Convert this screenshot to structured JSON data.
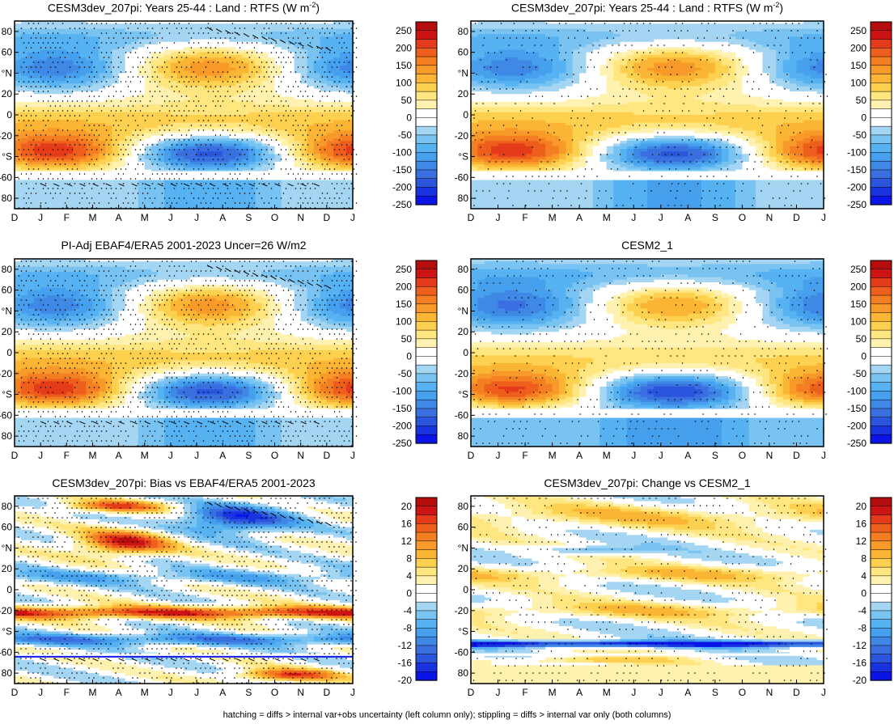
{
  "footer": "hatching = diffs > internal var+obs uncertainty (left column only); stippling = diffs > internal var only (both columns)",
  "colors": {
    "full": [
      "#0a14e6",
      "#1a33e0",
      "#2b55dd",
      "#3a6fe0",
      "#3f88e6",
      "#46a0ee",
      "#57b2f2",
      "#78c3f1",
      "#a4d5f2",
      "#ffffff",
      "#ffffff",
      "#fff2b0",
      "#ffe680",
      "#fdd14f",
      "#fbb534",
      "#f89a2a",
      "#f47f22",
      "#ee5f1d",
      "#e43b1a",
      "#cc1414",
      "#b50d0d"
    ],
    "diff": [
      "#0a14e6",
      "#1a33e0",
      "#2b55dd",
      "#3a6fe0",
      "#3f88e6",
      "#46a0ee",
      "#57b2f2",
      "#78c3f1",
      "#a4d5f2",
      "#ffffff",
      "#ffffff",
      "#fff2b0",
      "#ffe680",
      "#fdd14f",
      "#fbb534",
      "#f89a2a",
      "#f47f22",
      "#ee5f1d",
      "#e43b1a",
      "#cc1414",
      "#b50d0d"
    ]
  },
  "chart_data": [
    {
      "type": "heatmap",
      "title": "CESM3dev_207pi: Years 25-44 : Land : RTFS (W m",
      "title_sup": "-2",
      "title_tail": ")",
      "x_ticks": [
        "D",
        "J",
        "F",
        "M",
        "A",
        "M",
        "J",
        "J",
        "A",
        "S",
        "O",
        "N",
        "D",
        "J"
      ],
      "y_ticks": [
        "80",
        "60",
        "°N",
        "20",
        "0",
        "-20",
        "°S",
        "-60",
        "80"
      ],
      "y_values": [
        80,
        60,
        40,
        20,
        0,
        -20,
        -40,
        -60,
        -80
      ],
      "xlim": [
        0,
        13
      ],
      "ylim": [
        -90,
        90
      ],
      "scale": "full",
      "colorbar_labels": [
        "250",
        "200",
        "150",
        "100",
        "50",
        "0",
        "-50",
        "-100",
        "-150",
        "-200",
        "-250"
      ],
      "stipple": true,
      "hatch": true
    },
    {
      "type": "heatmap",
      "title": "CESM3dev_207pi: Years 25-44 : Land : RTFS (W m",
      "title_sup": "-2",
      "title_tail": ")",
      "x_ticks": [
        "D",
        "J",
        "F",
        "M",
        "A",
        "M",
        "J",
        "J",
        "A",
        "S",
        "O",
        "N",
        "D",
        "J"
      ],
      "y_ticks": [
        "80",
        "60",
        "°N",
        "20",
        "0",
        "-20",
        "°S",
        "-60",
        "80"
      ],
      "y_values": [
        80,
        60,
        40,
        20,
        0,
        -20,
        -40,
        -60,
        -80
      ],
      "xlim": [
        0,
        13
      ],
      "ylim": [
        -90,
        90
      ],
      "scale": "full",
      "colorbar_labels": [
        "250",
        "200",
        "150",
        "100",
        "50",
        "0",
        "-50",
        "-100",
        "-150",
        "-200",
        "-250"
      ],
      "stipple": true,
      "hatch": false
    },
    {
      "type": "heatmap",
      "title": "PI-Adj EBAF4/ERA5 2001-2023 Uncer=26 W/m2",
      "title_sup": "",
      "title_tail": "",
      "x_ticks": [
        "D",
        "J",
        "F",
        "M",
        "A",
        "M",
        "J",
        "J",
        "A",
        "S",
        "O",
        "N",
        "D",
        "J"
      ],
      "y_ticks": [
        "80",
        "60",
        "°N",
        "20",
        "0",
        "-20",
        "°S",
        "-60",
        "80"
      ],
      "y_values": [
        80,
        60,
        40,
        20,
        0,
        -20,
        -40,
        -60,
        -80
      ],
      "xlim": [
        0,
        13
      ],
      "ylim": [
        -90,
        90
      ],
      "scale": "full",
      "colorbar_labels": [
        "250",
        "200",
        "150",
        "100",
        "50",
        "0",
        "-50",
        "-100",
        "-150",
        "-200",
        "-250"
      ],
      "stipple": true,
      "hatch": true
    },
    {
      "type": "heatmap",
      "title": "CESM2_1",
      "title_sup": "",
      "title_tail": "",
      "x_ticks": [
        "D",
        "J",
        "F",
        "M",
        "A",
        "M",
        "J",
        "J",
        "A",
        "S",
        "O",
        "N",
        "D",
        "J"
      ],
      "y_ticks": [
        "80",
        "60",
        "°N",
        "20",
        "0",
        "-20",
        "°S",
        "-60",
        "80"
      ],
      "y_values": [
        80,
        60,
        40,
        20,
        0,
        -20,
        -40,
        -60,
        -80
      ],
      "xlim": [
        0,
        13
      ],
      "ylim": [
        -90,
        90
      ],
      "scale": "full",
      "colorbar_labels": [
        "250",
        "200",
        "150",
        "100",
        "50",
        "0",
        "-50",
        "-100",
        "-150",
        "-200",
        "-250"
      ],
      "stipple": true,
      "hatch": false
    },
    {
      "type": "heatmap",
      "title": "CESM3dev_207pi: Bias vs EBAF4/ERA5 2001-2023",
      "title_sup": "",
      "title_tail": "",
      "x_ticks": [
        "D",
        "J",
        "F",
        "M",
        "A",
        "M",
        "J",
        "J",
        "A",
        "S",
        "O",
        "N",
        "D",
        "J"
      ],
      "y_ticks": [
        "80",
        "60",
        "°N",
        "20",
        "0",
        "-20",
        "°S",
        "-60",
        "80"
      ],
      "y_values": [
        80,
        60,
        40,
        20,
        0,
        -20,
        -40,
        -60,
        -80
      ],
      "xlim": [
        0,
        13
      ],
      "ylim": [
        -90,
        90
      ],
      "scale": "diff",
      "colorbar_labels": [
        "20",
        "16",
        "12",
        "8",
        "4",
        "0",
        "-4",
        "-8",
        "-12",
        "-16",
        "-20"
      ],
      "stipple": true,
      "hatch": true
    },
    {
      "type": "heatmap",
      "title": "CESM3dev_207pi: Change vs CESM2_1",
      "title_sup": "",
      "title_tail": "",
      "x_ticks": [
        "D",
        "J",
        "F",
        "M",
        "A",
        "M",
        "J",
        "J",
        "A",
        "S",
        "O",
        "N",
        "D",
        "J"
      ],
      "y_ticks": [
        "80",
        "60",
        "°N",
        "20",
        "0",
        "-20",
        "°S",
        "-60",
        "80"
      ],
      "y_values": [
        80,
        60,
        40,
        20,
        0,
        -20,
        -40,
        -60,
        -80
      ],
      "xlim": [
        0,
        13
      ],
      "ylim": [
        -90,
        90
      ],
      "scale": "diff",
      "colorbar_labels": [
        "20",
        "16",
        "12",
        "8",
        "4",
        "0",
        "-4",
        "-8",
        "-12",
        "-16",
        "-20"
      ],
      "stipple": true,
      "hatch": false
    }
  ]
}
